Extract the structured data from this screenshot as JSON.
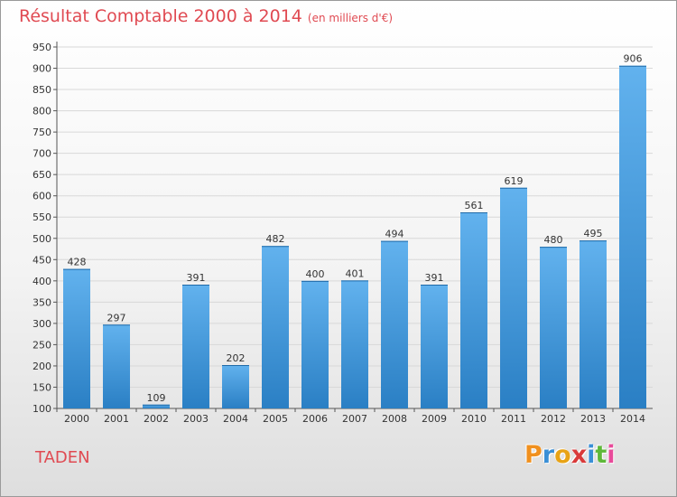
{
  "header": {
    "title": "Résultat Comptable 2000 à 2014",
    "subtitle": "(en milliers d'€)"
  },
  "commune": "TADEN",
  "logo": {
    "text": "Proxiti",
    "letter_colors": [
      "#f0901e",
      "#3a8fd6",
      "#e8a316",
      "#d93a3a",
      "#3a8fd6",
      "#5fb83a",
      "#e84a9a"
    ]
  },
  "colors": {
    "title": "#e04a52",
    "bar_top": "#62b2ee",
    "bar_bottom": "#2a7fc4",
    "grid": "#d8d8d8"
  },
  "chart_data": {
    "type": "bar",
    "categories": [
      "2000",
      "2001",
      "2002",
      "2003",
      "2004",
      "2005",
      "2006",
      "2007",
      "2008",
      "2009",
      "2010",
      "2011",
      "2012",
      "2013",
      "2014"
    ],
    "values": [
      428,
      297,
      109,
      391,
      202,
      482,
      400,
      401,
      494,
      391,
      561,
      619,
      480,
      495,
      906
    ],
    "ylim": [
      100,
      950
    ],
    "yticks": [
      100,
      150,
      200,
      250,
      300,
      350,
      400,
      450,
      500,
      550,
      600,
      650,
      700,
      750,
      800,
      850,
      900,
      950
    ],
    "grid": true,
    "xlabel": "",
    "ylabel": ""
  }
}
